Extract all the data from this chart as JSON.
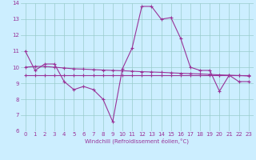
{
  "xlabel": "Windchill (Refroidissement éolien,°C)",
  "xlim": [
    -0.5,
    23.5
  ],
  "ylim": [
    6,
    14
  ],
  "yticks": [
    6,
    7,
    8,
    9,
    10,
    11,
    12,
    13,
    14
  ],
  "xticks": [
    0,
    1,
    2,
    3,
    4,
    5,
    6,
    7,
    8,
    9,
    10,
    11,
    12,
    13,
    14,
    15,
    16,
    17,
    18,
    19,
    20,
    21,
    22,
    23
  ],
  "bg_color": "#cceeff",
  "line_color": "#993399",
  "grid_color": "#99cccc",
  "line1_x": [
    0,
    1,
    2,
    3,
    4,
    5,
    6,
    7,
    8,
    9,
    10,
    11,
    12,
    13,
    14,
    15,
    16,
    17,
    18,
    19,
    20,
    21,
    22,
    23
  ],
  "line1_y": [
    11.0,
    9.8,
    10.2,
    10.2,
    9.1,
    8.6,
    8.8,
    8.6,
    8.0,
    6.6,
    9.9,
    11.2,
    13.8,
    13.8,
    13.0,
    13.1,
    11.8,
    10.0,
    9.8,
    9.8,
    8.5,
    9.5,
    9.1,
    9.1
  ],
  "line2_x": [
    0,
    1,
    2,
    3,
    4,
    5,
    6,
    7,
    8,
    9,
    10,
    11,
    12,
    13,
    14,
    15,
    16,
    17,
    18,
    19,
    20,
    21,
    22,
    23
  ],
  "line2_y": [
    10.0,
    10.05,
    10.05,
    10.0,
    9.95,
    9.9,
    9.88,
    9.85,
    9.82,
    9.8,
    9.78,
    9.75,
    9.72,
    9.7,
    9.68,
    9.65,
    9.62,
    9.6,
    9.58,
    9.55,
    9.52,
    9.5,
    9.48,
    9.45
  ],
  "line3_x": [
    0,
    1,
    2,
    3,
    4,
    5,
    6,
    7,
    8,
    9,
    10,
    11,
    12,
    13,
    14,
    15,
    16,
    17,
    18,
    19,
    20,
    21,
    22,
    23
  ],
  "line3_y": [
    9.5,
    9.5,
    9.5,
    9.5,
    9.5,
    9.5,
    9.5,
    9.5,
    9.5,
    9.5,
    9.5,
    9.5,
    9.5,
    9.5,
    9.5,
    9.5,
    9.5,
    9.5,
    9.5,
    9.5,
    9.5,
    9.5,
    9.5,
    9.5
  ]
}
